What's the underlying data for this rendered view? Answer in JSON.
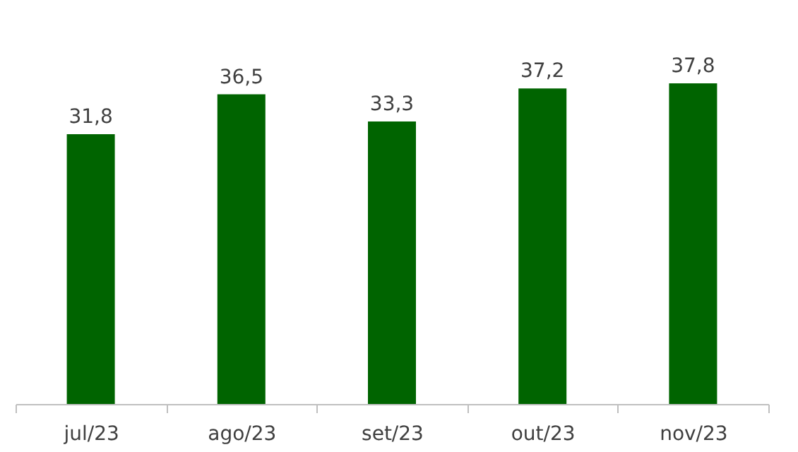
{
  "chart_data": {
    "type": "bar",
    "categories": [
      "jul/23",
      "ago/23",
      "set/23",
      "out/23",
      "nov/23"
    ],
    "values": [
      31.8,
      36.5,
      33.3,
      37.2,
      37.8
    ],
    "value_labels": [
      "31,8",
      "36,5",
      "33,3",
      "37,2",
      "37,8"
    ],
    "color": "#006400",
    "grid": false,
    "tick_labels": "x"
  }
}
